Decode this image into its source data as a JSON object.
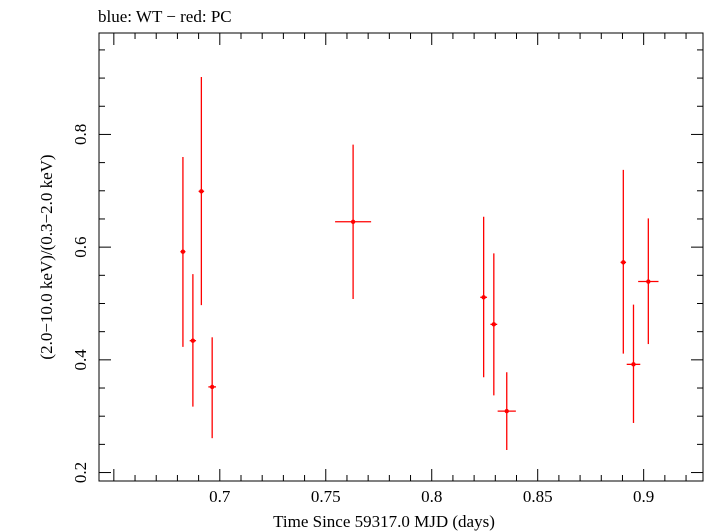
{
  "header": {
    "label": "blue: WT − red: PC"
  },
  "chart_data": {
    "type": "scatter",
    "title": "blue: WT − red: PC",
    "xlabel": "Time Since 59317.0 MJD (days)",
    "ylabel": "(2.0−10.0 keV)/(0.3−2.0 keV)",
    "xlim": [
      0.643,
      0.928
    ],
    "ylim": [
      0.185,
      0.98
    ],
    "x_ticks": [
      0.7,
      0.75,
      0.8,
      0.85,
      0.9
    ],
    "x_tick_labels": [
      "0.7",
      "0.75",
      "0.8",
      "0.85",
      "0.9"
    ],
    "y_ticks": [
      0.2,
      0.4,
      0.6,
      0.8
    ],
    "y_tick_labels": [
      "0.2",
      "0.4",
      "0.6",
      "0.8"
    ],
    "grid": false,
    "legend": "none",
    "series": [
      {
        "color": "#ff0000",
        "points": [
          {
            "x": 0.6826,
            "xerr": 0.0012,
            "y": 0.592,
            "ylo": 0.423,
            "yhi": 0.76
          },
          {
            "x": 0.6873,
            "xerr": 0.0015,
            "y": 0.434,
            "ylo": 0.317,
            "yhi": 0.552
          },
          {
            "x": 0.6913,
            "xerr": 0.0013,
            "y": 0.699,
            "ylo": 0.497,
            "yhi": 0.902
          },
          {
            "x": 0.6964,
            "xerr": 0.0018,
            "y": 0.352,
            "ylo": 0.261,
            "yhi": 0.44
          },
          {
            "x": 0.7629,
            "xerr": 0.0085,
            "y": 0.645,
            "ylo": 0.508,
            "yhi": 0.782
          },
          {
            "x": 0.8245,
            "xerr": 0.0016,
            "y": 0.511,
            "ylo": 0.369,
            "yhi": 0.654
          },
          {
            "x": 0.8293,
            "xerr": 0.0016,
            "y": 0.463,
            "ylo": 0.337,
            "yhi": 0.589
          },
          {
            "x": 0.8354,
            "xerr": 0.0043,
            "y": 0.309,
            "ylo": 0.24,
            "yhi": 0.378
          },
          {
            "x": 0.8904,
            "xerr": 0.0013,
            "y": 0.573,
            "ylo": 0.411,
            "yhi": 0.737
          },
          {
            "x": 0.8952,
            "xerr": 0.0032,
            "y": 0.392,
            "ylo": 0.288,
            "yhi": 0.498
          },
          {
            "x": 0.9022,
            "xerr": 0.0048,
            "y": 0.539,
            "ylo": 0.428,
            "yhi": 0.651
          }
        ]
      }
    ]
  }
}
